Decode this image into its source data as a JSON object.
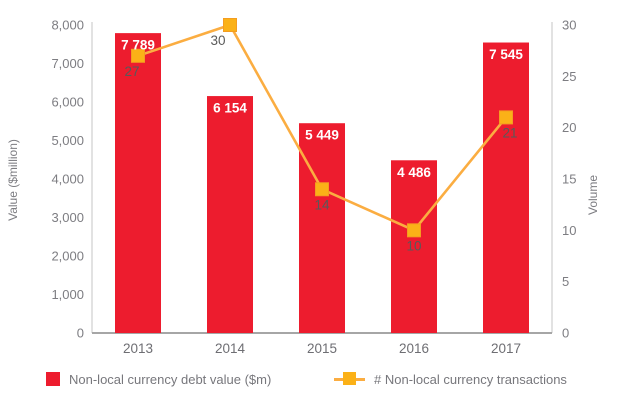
{
  "chart_data": {
    "type": "bar",
    "subtype": "bar-and-line-combo",
    "categories": [
      "2013",
      "2014",
      "2015",
      "2016",
      "2017"
    ],
    "series": [
      {
        "name": "Non-local currency debt value ($m)",
        "type": "bar",
        "axis": "left",
        "values": [
          7789,
          6154,
          5449,
          4486,
          7545
        ],
        "value_labels": [
          "7 789",
          "6 154",
          "5 449",
          "4 486",
          "7 545"
        ],
        "color": "#ED1C2E"
      },
      {
        "name": "# Non-local currency transactions",
        "type": "line",
        "axis": "right",
        "values": [
          27,
          30,
          14,
          10,
          21
        ],
        "value_labels": [
          "27",
          "30",
          "14",
          "10",
          "21"
        ],
        "color": "#FBB117",
        "line_color": "#FBAD41"
      }
    ],
    "left_axis": {
      "label": "Value ($million)",
      "min": 0,
      "max": 8000,
      "ticks": [
        0,
        1000,
        2000,
        3000,
        4000,
        5000,
        6000,
        7000,
        8000
      ],
      "tick_labels": [
        "0",
        "1,000",
        "2,000",
        "3,000",
        "4,000",
        "5,000",
        "6,000",
        "7,000",
        "8,000"
      ]
    },
    "right_axis": {
      "label": "Volume",
      "min": 0,
      "max": 30,
      "ticks": [
        0,
        5,
        10,
        15,
        20,
        25,
        30
      ],
      "tick_labels": [
        "0",
        "5",
        "10",
        "15",
        "20",
        "25",
        "30"
      ]
    },
    "legend_position": "bottom",
    "grid": false
  },
  "colors": {
    "bar": "#ED1C2E",
    "line": "#FBAD41",
    "marker": "#FBB117",
    "marker_edge": "#F49D20",
    "axis_text": "#7d7d82",
    "year_text": "#6e6e73",
    "line_label_text": "#595959",
    "bar_label_text": "#ffffff",
    "axis_line_light": "#d9d9d9",
    "axis_line_dark": "#a6a6a6",
    "legend_text": "#77777c"
  }
}
